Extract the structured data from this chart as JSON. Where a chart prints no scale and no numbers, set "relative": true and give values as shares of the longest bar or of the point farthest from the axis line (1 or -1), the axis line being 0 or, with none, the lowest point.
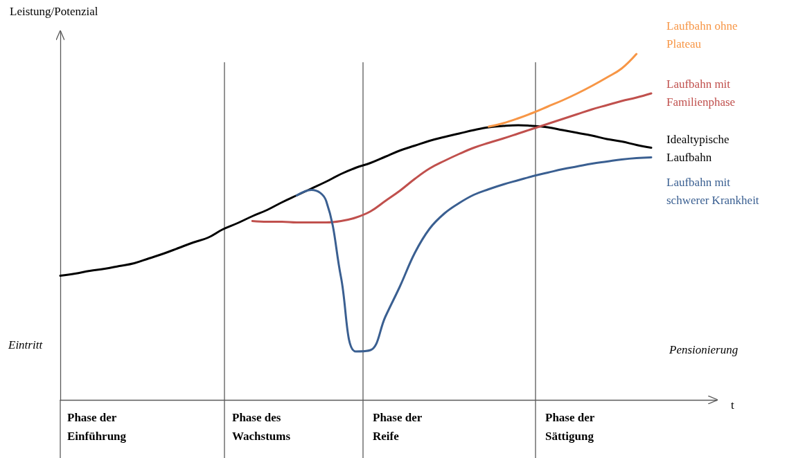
{
  "chart_data": {
    "type": "line",
    "relative": true,
    "ylabel": "Leistung/Potenzial",
    "categories": [
      null,
      null,
      null,
      null,
      null,
      null,
      null,
      null,
      null,
      null,
      null,
      null,
      null,
      null,
      null,
      null,
      null,
      null,
      null,
      null,
      null,
      null,
      null,
      null,
      null,
      null,
      null,
      null,
      null,
      null,
      null,
      null,
      null,
      null,
      null,
      null,
      null,
      null,
      null,
      null,
      null
    ],
    "series": [
      {
        "name": "Idealtypische Laufbahn",
        "color": "#000000",
        "values": [
          0.359,
          0.365,
          0.373,
          0.379,
          0.387,
          0.395,
          0.409,
          0.423,
          0.439,
          0.455,
          0.469,
          0.493,
          0.511,
          0.531,
          0.549,
          0.571,
          0.591,
          0.611,
          0.631,
          0.653,
          0.671,
          0.685,
          0.703,
          0.721,
          0.735,
          0.749,
          0.76,
          0.77,
          0.78,
          0.788,
          0.792,
          0.794,
          0.792,
          0.788,
          0.78,
          0.772,
          0.764,
          0.754,
          0.747,
          0.737,
          0.729
        ]
      },
      {
        "name": "Laufbahn mit Familienphase",
        "color": "#c0504d",
        "values": [
          null,
          null,
          null,
          null,
          null,
          null,
          null,
          null,
          null,
          null,
          null,
          null,
          null,
          0.517,
          0.515,
          0.515,
          0.513,
          0.513,
          0.513,
          0.517,
          0.527,
          0.545,
          0.575,
          0.605,
          0.639,
          0.669,
          0.691,
          0.711,
          0.729,
          0.743,
          0.756,
          0.77,
          0.784,
          0.798,
          0.812,
          0.826,
          0.84,
          0.852,
          0.864,
          0.874,
          0.886
        ]
      },
      {
        "name": "Laufbahn mit schwerer Krankheit",
        "color": "#3a5f91",
        "values": [
          null,
          null,
          null,
          null,
          null,
          null,
          null,
          null,
          null,
          null,
          null,
          null,
          null,
          null,
          null,
          null,
          0.591,
          0.607,
          0.575,
          0.355,
          0.14,
          0.144,
          0.24,
          0.329,
          0.425,
          0.495,
          0.539,
          0.569,
          0.593,
          0.609,
          0.623,
          0.635,
          0.647,
          0.657,
          0.667,
          0.675,
          0.683,
          0.689,
          0.695,
          0.699,
          0.701
        ]
      },
      {
        "name": "Laufbahn ohne Plateau",
        "color": "#f79646",
        "values": [
          null,
          null,
          null,
          null,
          null,
          null,
          null,
          null,
          null,
          null,
          null,
          null,
          null,
          null,
          null,
          null,
          null,
          null,
          null,
          null,
          null,
          null,
          null,
          null,
          null,
          null,
          null,
          null,
          null,
          0.79,
          0.8,
          0.814,
          0.83,
          0.848,
          0.866,
          0.886,
          0.908,
          0.932,
          0.958,
          1.0,
          null
        ]
      }
    ],
    "annotations": [
      "Eintritt",
      "Pensionierung",
      "Phase der Einführung",
      "Phase des Wachstums",
      "Phase der Reife",
      "Phase der Sättigung",
      "t"
    ],
    "grid": false,
    "legend": false,
    "marker": "none",
    "line_style": "solid"
  }
}
